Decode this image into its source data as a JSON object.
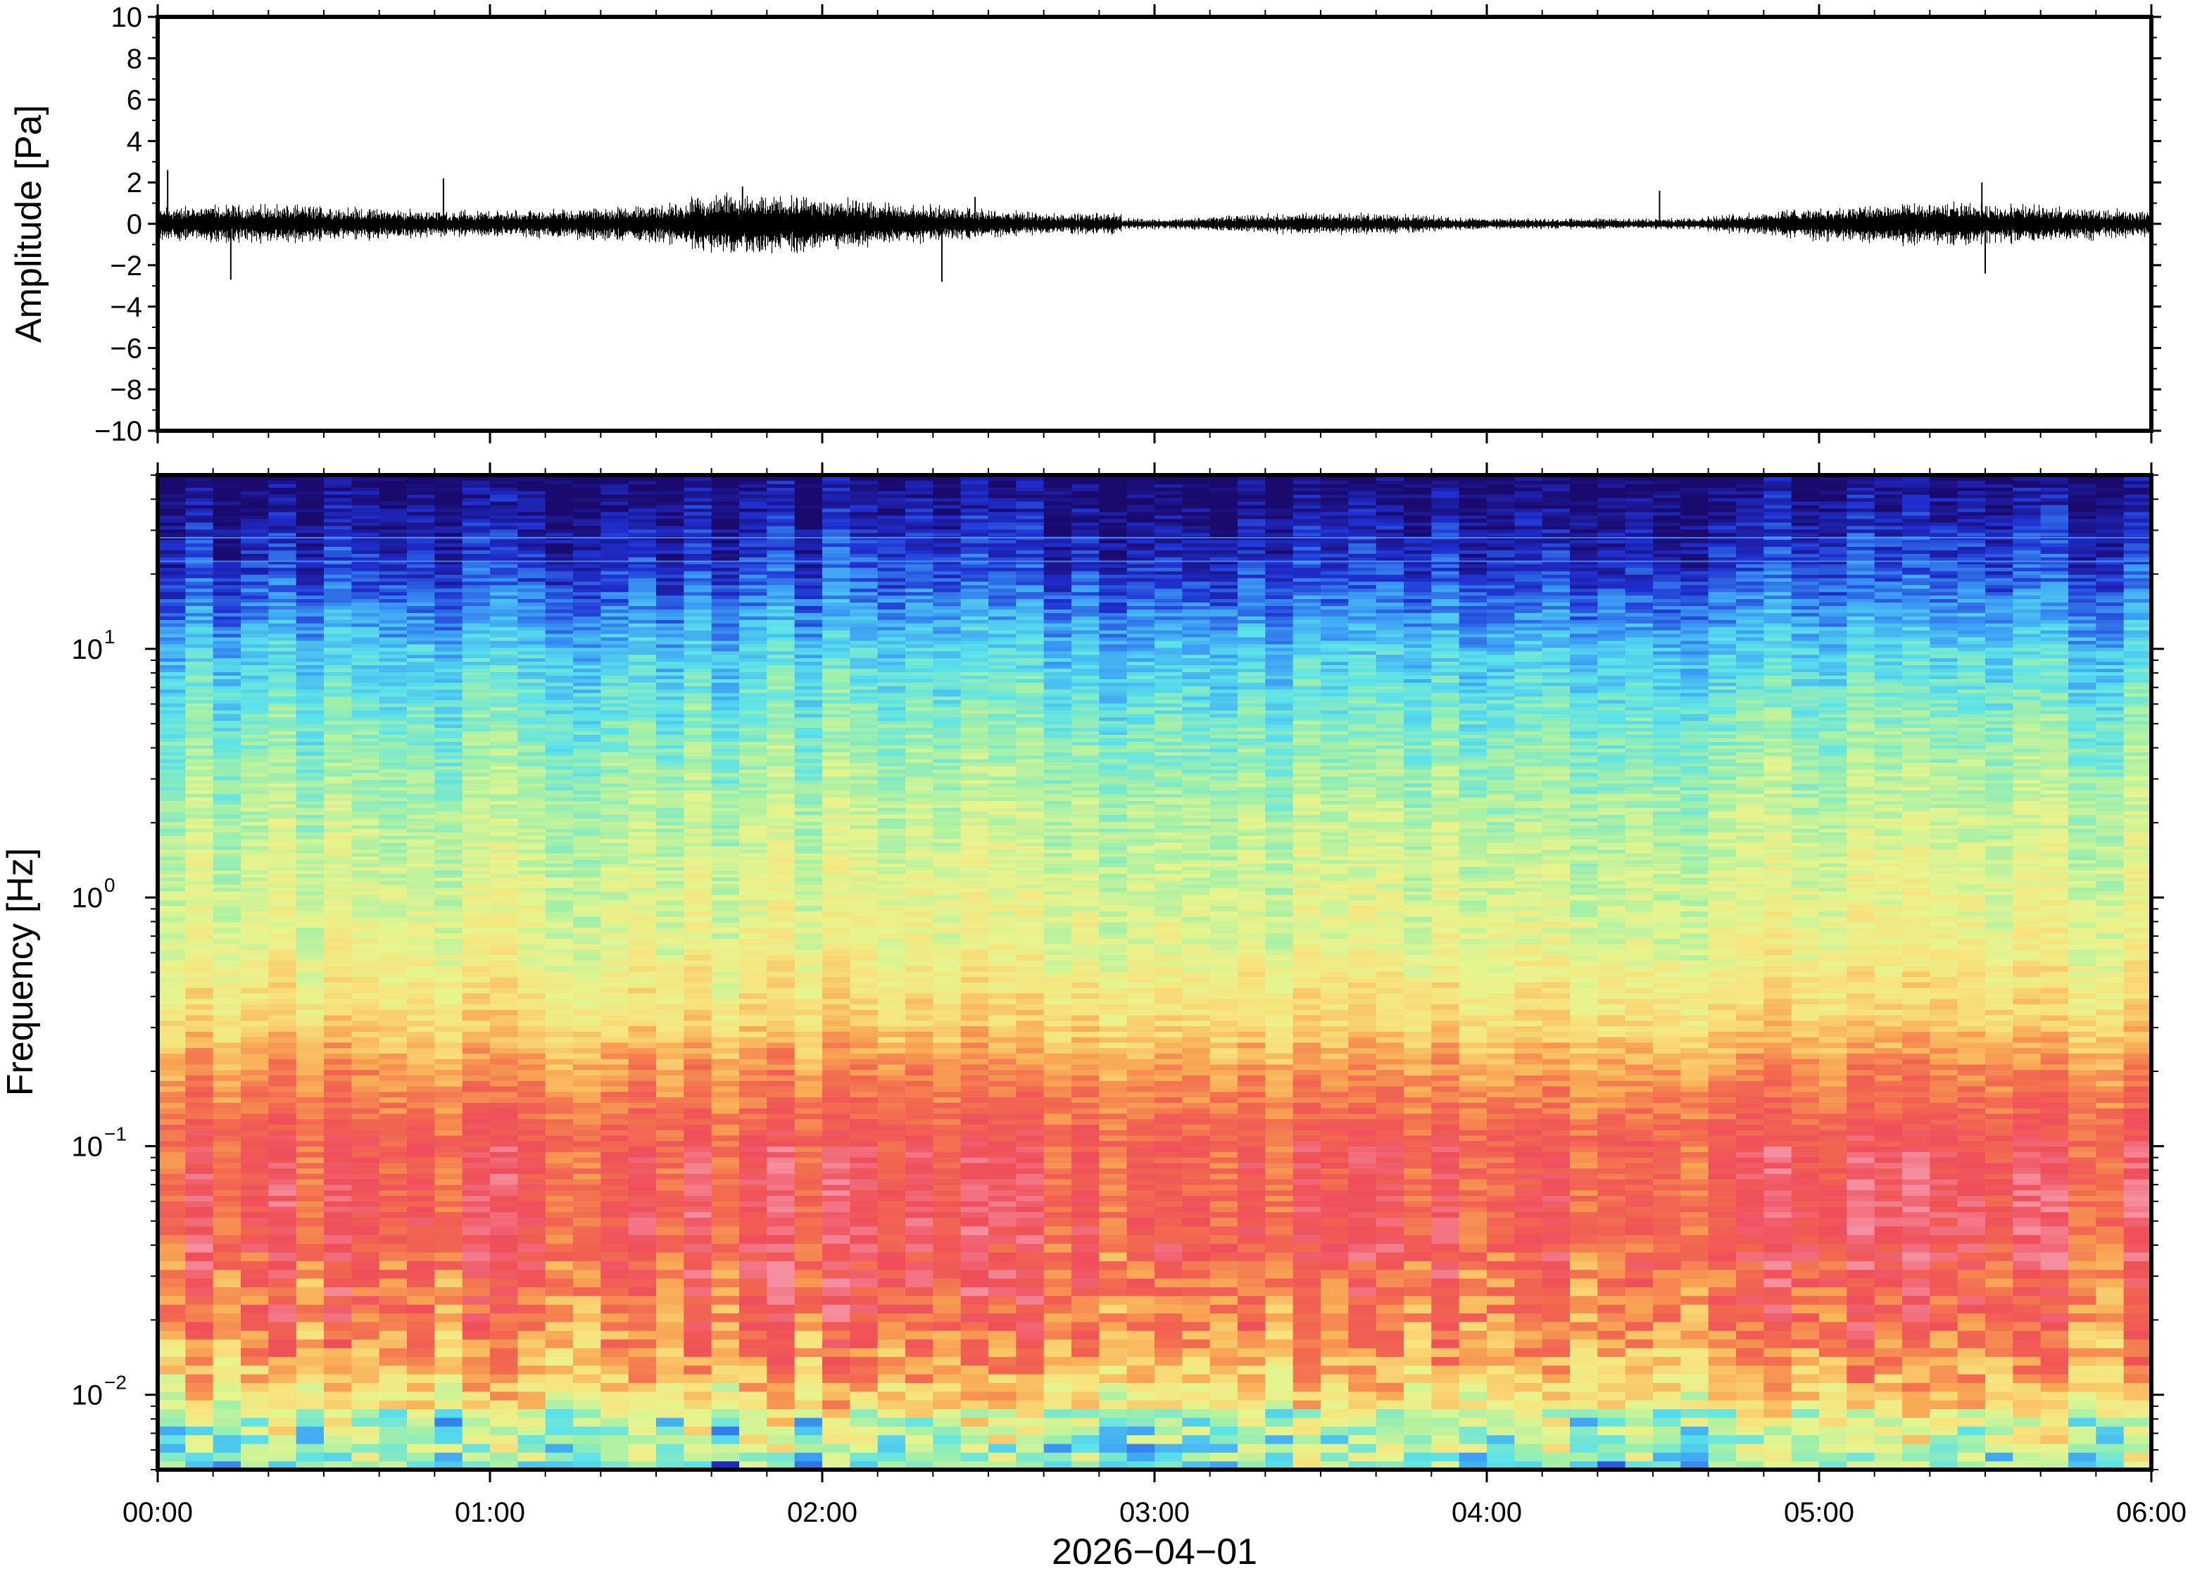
{
  "chart_data": [
    {
      "type": "line",
      "panel": "waveform",
      "ylabel": "Amplitude [Pa]",
      "ylim": [
        -10,
        10
      ],
      "y_ticks": [
        10,
        8,
        6,
        4,
        2,
        0,
        -2,
        -4,
        -6,
        -8,
        -10
      ],
      "y_tick_labels": [
        "10",
        "8",
        "6",
        "4",
        "2",
        "0",
        "−2",
        "−4",
        "−6",
        "−8",
        "−10"
      ],
      "x_range_hours": [
        0,
        6
      ],
      "series": [
        {
          "color": "#000000",
          "typical_envelope_pa": [
            -0.8,
            0.8
          ],
          "spikes": [
            {
              "t_hours": 0.03,
              "value": 2.6
            },
            {
              "t_hours": 0.22,
              "value": -2.7
            },
            {
              "t_hours": 0.86,
              "value": 2.2
            },
            {
              "t_hours": 1.76,
              "value": 1.8
            },
            {
              "t_hours": 2.36,
              "value": -2.8
            },
            {
              "t_hours": 2.46,
              "value": 1.3
            },
            {
              "t_hours": 4.52,
              "value": 1.6
            },
            {
              "t_hours": 5.49,
              "value": 2.0
            },
            {
              "t_hours": 5.5,
              "value": -2.4
            }
          ]
        }
      ]
    },
    {
      "type": "heatmap",
      "panel": "spectrogram",
      "ylabel": "Frequency [Hz]",
      "yscale": "log",
      "ylim": [
        0.005,
        50
      ],
      "y_ticks": [
        {
          "value": 10,
          "base": "10",
          "exp": "1"
        },
        {
          "value": 1,
          "base": "10",
          "exp": "0"
        },
        {
          "value": 0.1,
          "base": "10",
          "exp": "−1"
        },
        {
          "value": 0.01,
          "base": "10",
          "exp": "−2"
        }
      ],
      "colormap": [
        "#1a0a6e",
        "#1f2fd1",
        "#3b9cf5",
        "#5be2ea",
        "#a3f0a8",
        "#e6f58e",
        "#f8e27d",
        "#f9ad55",
        "#f26a4f",
        "#ef4e5a",
        "#f58fa0"
      ]
    }
  ],
  "x_axis": {
    "tick_labels": [
      "00:00",
      "01:00",
      "02:00",
      "03:00",
      "04:00",
      "05:00",
      "06:00"
    ],
    "date_label": "2026−04−01"
  },
  "colors": {
    "frame": "#000000",
    "trace": "#000000",
    "background": "#ffffff"
  }
}
